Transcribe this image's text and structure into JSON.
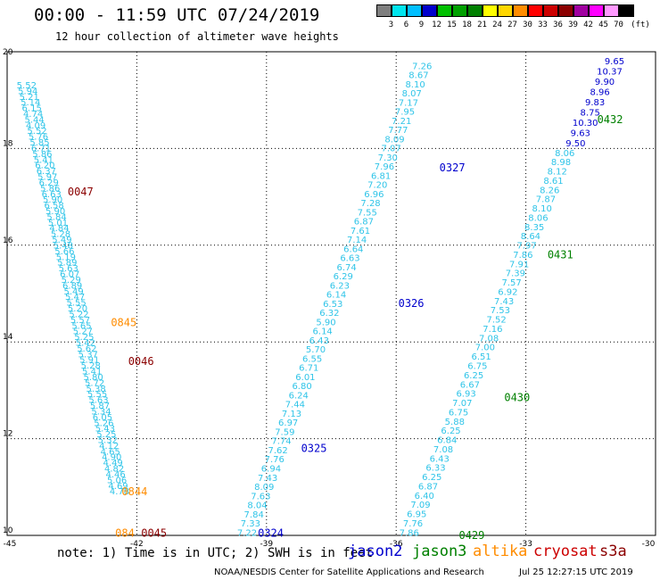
{
  "header": {
    "title": "00:00 - 11:59 UTC 07/24/2019",
    "subtitle": "12 hour collection of altimeter wave heights"
  },
  "color_scale": {
    "unit": "(ft)",
    "bins": [
      {
        "label": "3",
        "color": "#7f7f7f"
      },
      {
        "label": "6",
        "color": "#00e5ee"
      },
      {
        "label": "9",
        "color": "#00bfff"
      },
      {
        "label": "12",
        "color": "#0000cd"
      },
      {
        "label": "15",
        "color": "#00c000"
      },
      {
        "label": "18",
        "color": "#00a000"
      },
      {
        "label": "21",
        "color": "#008000"
      },
      {
        "label": "24",
        "color": "#ffff00"
      },
      {
        "label": "27",
        "color": "#ffd700"
      },
      {
        "label": "30",
        "color": "#ff8c00"
      },
      {
        "label": "33",
        "color": "#ff0000"
      },
      {
        "label": "36",
        "color": "#cc0000"
      },
      {
        "label": "39",
        "color": "#8b0000"
      },
      {
        "label": "42",
        "color": "#a000a0"
      },
      {
        "label": "45",
        "color": "#ff00ff"
      },
      {
        "label": "70",
        "color": "#ff99ff"
      },
      {
        "label": "",
        "color": "#000000"
      }
    ]
  },
  "map": {
    "lon_ticks": [
      "-45",
      "-42",
      "-39",
      "-36",
      "-33",
      "-30"
    ],
    "lat_ticks": [
      "20",
      "18",
      "16",
      "14",
      "12",
      "10"
    ],
    "tracks": [
      {
        "id": "a",
        "color": "#2fc4e8",
        "top_lat": 19.3,
        "bottom_lat": 10.9,
        "top_lon": -44.55,
        "bottom_lon": -42.4,
        "values": [
          "5.52",
          "5.94",
          "5.21",
          "5.14",
          "6.15",
          "4.74",
          "5.44",
          "4.09",
          "5.52",
          "5.76",
          "5.85",
          "6.71",
          "5.86",
          "5.41",
          "6.20",
          "6.37",
          "5.97",
          "6.29",
          "5.86",
          "6.63",
          "5.90",
          "6.58",
          "5.90",
          "5.84",
          "5.01",
          "4.84",
          "5.28",
          "5.49",
          "5.48",
          "5.66",
          "5.19",
          "5.89",
          "5.63",
          "6.07",
          "5.29",
          "6.89",
          "5.49",
          "5.47",
          "5.55",
          "5.20",
          "5.22",
          "5.57",
          "5.65",
          "5.27",
          "5.25",
          "5.42",
          "5.62",
          "5.37",
          "5.91",
          "5.28",
          "5.41",
          "5.80",
          "5.72",
          "5.38",
          "5.55",
          "5.63",
          "5.87",
          "5.34",
          "6.05",
          "5.26",
          "5.43",
          "5.25",
          "5.32",
          "4.12",
          "4.65",
          "4.90",
          "4.49",
          "4.82",
          "4.46",
          "5.06",
          "4.69",
          "4.78"
        ]
      },
      {
        "id": "b",
        "color": "#2fc4e8",
        "top_lat": 19.7,
        "bottom_lat": 10.05,
        "top_lon": -35.4,
        "bottom_lon": -39.45,
        "values": [
          "7.26",
          "8.67",
          "8.10",
          "8.07",
          "7.17",
          "7.95",
          "7.21",
          "7.77",
          "8.09",
          "7.07",
          "7.30",
          "7.96",
          "6.81",
          "7.20",
          "6.96",
          "7.28",
          "7.55",
          "6.87",
          "7.61",
          "7.14",
          "6.64",
          "6.63",
          "6.74",
          "6.29",
          "6.23",
          "6.14",
          "6.53",
          "6.32",
          "5.90",
          "6.14",
          "6.43",
          "5.70",
          "6.55",
          "6.71",
          "6.01",
          "6.80",
          "6.24",
          "7.44",
          "7.13",
          "6.97",
          "7.59",
          "7.74",
          "7.62",
          "7.76",
          "6.94",
          "7.43",
          "8.09",
          "7.63",
          "8.04",
          "7.84",
          "7.33",
          "7.22"
        ]
      },
      {
        "id": "c",
        "color": "#2fc4e8",
        "top_lat": 17.9,
        "bottom_lat": 10.05,
        "top_lon": -32.1,
        "bottom_lon": -35.7,
        "values": [
          "8.06",
          "8.98",
          "8.12",
          "8.61",
          "8.26",
          "7.87",
          "8.10",
          "8.06",
          "8.35",
          "8.64",
          "7.97",
          "7.86",
          "7.91",
          "7.39",
          "7.57",
          "6.92",
          "7.43",
          "7.53",
          "7.52",
          "7.16",
          "7.08",
          "7.00",
          "6.51",
          "6.75",
          "6.25",
          "6.67",
          "6.93",
          "7.07",
          "6.75",
          "5.88",
          "6.25",
          "6.84",
          "7.08",
          "6.43",
          "6.33",
          "6.25",
          "6.87",
          "6.40",
          "7.09",
          "6.95",
          "7.76",
          "7.86"
        ]
      },
      {
        "id": "d",
        "color": "#0000cd",
        "top_lat": 19.8,
        "bottom_lat": 18.1,
        "top_lon": -30.95,
        "bottom_lon": -31.85,
        "values": [
          "9.65",
          "10.37",
          "9.90",
          "8.96",
          "9.83",
          "8.75",
          "10.30",
          "9.63",
          "9.50"
        ]
      }
    ],
    "pass_labels": [
      {
        "text": "0047",
        "color": "#8b0000",
        "lon": -43.6,
        "lat": 17.1
      },
      {
        "text": "0845",
        "color": "#ff8c00",
        "lon": -42.6,
        "lat": 14.4
      },
      {
        "text": "0046",
        "color": "#8b0000",
        "lon": -42.2,
        "lat": 13.6
      },
      {
        "text": "0844",
        "color": "#ff8c00",
        "lon": -42.35,
        "lat": 10.9
      },
      {
        "text": "084",
        "color": "#ff8c00",
        "lon": -42.5,
        "lat": 10.05
      },
      {
        "text": "0045",
        "color": "#8b0000",
        "lon": -41.9,
        "lat": 10.05
      },
      {
        "text": "0327",
        "color": "#0000cd",
        "lon": -35.0,
        "lat": 17.6
      },
      {
        "text": "0326",
        "color": "#0000cd",
        "lon": -35.95,
        "lat": 14.8
      },
      {
        "text": "0325",
        "color": "#0000cd",
        "lon": -38.2,
        "lat": 11.8
      },
      {
        "text": "0324",
        "color": "#0000cd",
        "lon": -39.2,
        "lat": 10.05
      },
      {
        "text": "0432",
        "color": "#008000",
        "lon": -31.35,
        "lat": 18.6
      },
      {
        "text": "0431",
        "color": "#008000",
        "lon": -32.5,
        "lat": 15.8
      },
      {
        "text": "0430",
        "color": "#008000",
        "lon": -33.5,
        "lat": 12.85
      },
      {
        "text": "0429",
        "color": "#008000",
        "lon": -34.55,
        "lat": 10.0
      }
    ]
  },
  "footer": {
    "note": "note: 1) Time is in UTC; 2) SWH is in feet",
    "satellites": [
      {
        "name": "jason2",
        "color": "#0000cd"
      },
      {
        "name": "jason3",
        "color": "#008000"
      },
      {
        "name": "altika",
        "color": "#ff8c00"
      },
      {
        "name": "cryosat",
        "color": "#cc0000"
      },
      {
        "name": "s3a",
        "color": "#8b0000"
      }
    ],
    "credit": "NOAA/NESDIS Center for Satellite Applications and Research",
    "timestamp": "Jul 25 12:27:15 UTC 2019"
  }
}
